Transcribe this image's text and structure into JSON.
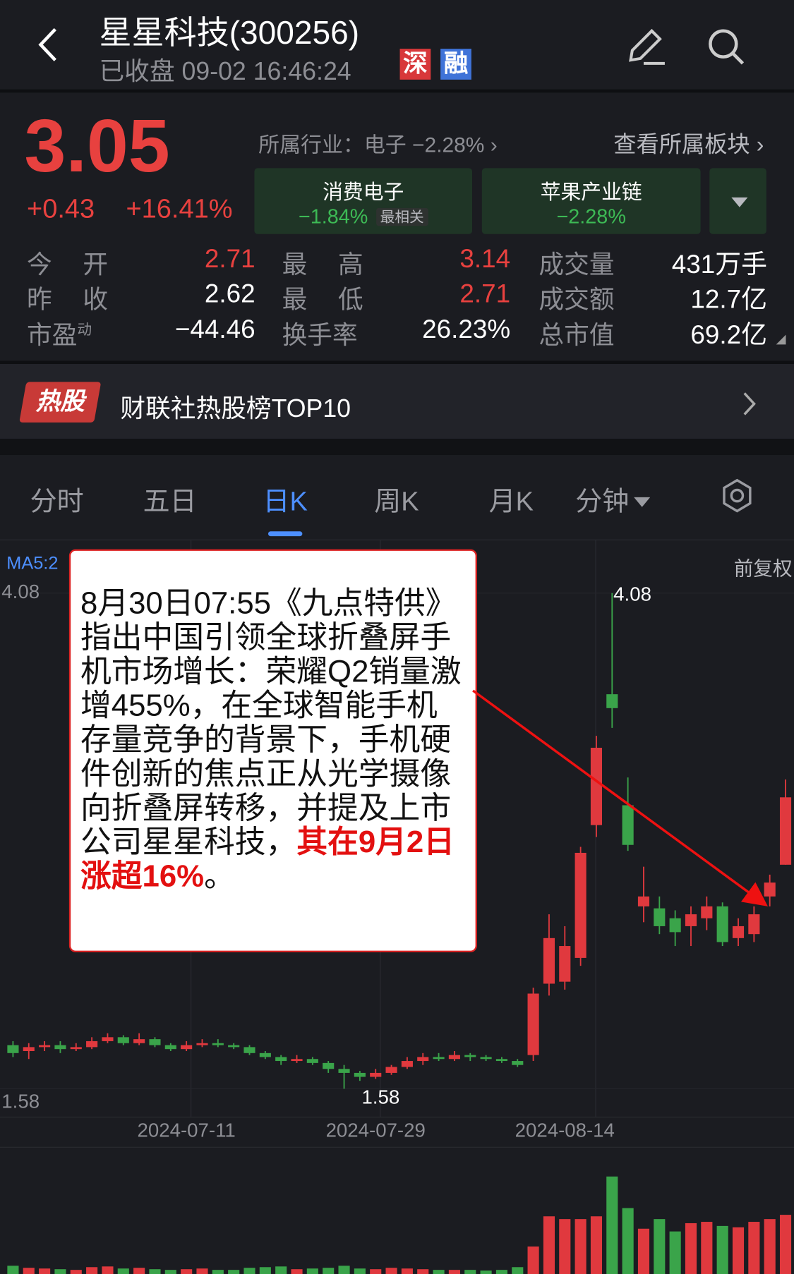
{
  "header": {
    "title": "星星科技(300256)",
    "status": "已收盘 09-02 16:46:24",
    "badges": [
      "深",
      "融"
    ]
  },
  "quote": {
    "price": "3.05",
    "change": "+0.43",
    "change_pct": "+16.41%",
    "industry": "所属行业：电子 −2.28%",
    "sector_link": "查看所属板块",
    "sectors": [
      {
        "name": "消费电子",
        "change": "−1.84%",
        "tag": "最相关"
      },
      {
        "name": "苹果产业链",
        "change": "−2.28%"
      }
    ],
    "stats": [
      {
        "label": "今 开",
        "value": "2.71",
        "color": "#e8413f"
      },
      {
        "label": "最 高",
        "value": "3.14",
        "color": "#e8413f"
      },
      {
        "label": "成交量",
        "value": "431万手",
        "color": "#ffffff"
      },
      {
        "label": "昨 收",
        "value": "2.62",
        "color": "#ffffff"
      },
      {
        "label": "最 低",
        "value": "2.71",
        "color": "#e8413f"
      },
      {
        "label": "成交额",
        "value": "12.7亿",
        "color": "#ffffff"
      },
      {
        "label": "市盈",
        "sup": "动",
        "value": "−44.46",
        "color": "#ffffff"
      },
      {
        "label": "换手率",
        "value": "26.23%",
        "color": "#ffffff"
      },
      {
        "label": "总市值",
        "value": "69.2亿",
        "color": "#ffffff"
      }
    ]
  },
  "hot": {
    "tag": "热股",
    "text": "财联社热股榜TOP10"
  },
  "tabs": {
    "items": [
      "分时",
      "五日",
      "日K",
      "周K",
      "月K",
      "分钟"
    ],
    "active": 2
  },
  "chart_data": {
    "type": "candlestick",
    "legend_text": "MA5:2",
    "adjust": "前复权",
    "up_color": "#e0393e",
    "down_color": "#3aa44a",
    "categories": [
      null,
      null,
      null,
      null,
      null,
      null,
      null,
      null,
      null,
      null,
      null,
      "2024-07-11",
      null,
      null,
      null,
      null,
      null,
      null,
      null,
      null,
      null,
      null,
      null,
      "2024-07-29",
      null,
      null,
      null,
      null,
      null,
      null,
      null,
      null,
      null,
      null,
      null,
      "2024-08-14",
      null,
      null,
      null,
      null,
      null,
      null,
      null,
      null,
      null,
      null,
      null,
      null,
      null,
      null
    ],
    "open": [
      1.8,
      1.77,
      1.79,
      1.8,
      1.78,
      1.79,
      1.82,
      1.84,
      1.81,
      1.83,
      1.8,
      1.78,
      1.8,
      1.81,
      1.8,
      1.79,
      1.76,
      1.74,
      1.72,
      1.73,
      1.71,
      1.68,
      1.66,
      1.64,
      1.66,
      1.69,
      1.72,
      1.74,
      1.73,
      1.75,
      1.74,
      1.73,
      1.72,
      1.75,
      2.11,
      2.12,
      2.24,
      2.91,
      3.57,
      3.01,
      2.5,
      2.49,
      2.44,
      2.4,
      2.44,
      2.5,
      2.34,
      2.36,
      2.55,
      2.71
    ],
    "close": [
      1.76,
      1.79,
      1.8,
      1.78,
      1.79,
      1.82,
      1.84,
      1.81,
      1.83,
      1.8,
      1.78,
      1.8,
      1.81,
      1.8,
      1.79,
      1.76,
      1.74,
      1.72,
      1.73,
      1.71,
      1.68,
      1.66,
      1.64,
      1.66,
      1.69,
      1.72,
      1.74,
      1.73,
      1.75,
      1.74,
      1.73,
      1.72,
      1.7,
      2.06,
      2.34,
      2.3,
      2.77,
      3.3,
      3.5,
      2.81,
      2.55,
      2.4,
      2.37,
      2.46,
      2.5,
      2.32,
      2.4,
      2.46,
      2.62,
      3.05
    ],
    "high": [
      1.82,
      1.81,
      1.82,
      1.82,
      1.81,
      1.84,
      1.86,
      1.85,
      1.86,
      1.84,
      1.81,
      1.82,
      1.83,
      1.83,
      1.81,
      1.8,
      1.77,
      1.75,
      1.75,
      1.74,
      1.72,
      1.7,
      1.67,
      1.68,
      1.7,
      1.74,
      1.76,
      1.76,
      1.77,
      1.76,
      1.75,
      1.74,
      1.73,
      2.09,
      2.46,
      2.4,
      2.8,
      3.36,
      4.08,
      3.15,
      2.7,
      2.55,
      2.48,
      2.5,
      2.55,
      2.52,
      2.44,
      2.5,
      2.66,
      3.14
    ],
    "low": [
      1.74,
      1.73,
      1.77,
      1.76,
      1.77,
      1.78,
      1.81,
      1.8,
      1.8,
      1.79,
      1.77,
      1.77,
      1.79,
      1.79,
      1.78,
      1.75,
      1.73,
      1.7,
      1.71,
      1.7,
      1.66,
      1.58,
      1.62,
      1.63,
      1.65,
      1.68,
      1.7,
      1.72,
      1.72,
      1.72,
      1.72,
      1.71,
      1.69,
      1.72,
      2.05,
      2.08,
      2.2,
      2.85,
      3.4,
      2.78,
      2.42,
      2.36,
      2.3,
      2.3,
      2.38,
      2.3,
      2.3,
      2.32,
      2.5,
      2.71
    ],
    "volume": [
      60,
      45,
      40,
      35,
      30,
      50,
      55,
      40,
      45,
      35,
      30,
      35,
      40,
      30,
      30,
      45,
      50,
      55,
      35,
      40,
      45,
      60,
      40,
      35,
      45,
      40,
      35,
      30,
      30,
      30,
      25,
      30,
      50,
      200,
      420,
      400,
      400,
      420,
      710,
      480,
      330,
      400,
      310,
      370,
      380,
      350,
      340,
      380,
      400,
      431
    ],
    "ylim": [
      1.58,
      4.08
    ],
    "yticks": [
      4.08,
      1.58
    ],
    "high_label": 4.08,
    "low_label": 1.58
  },
  "note": {
    "text": "8月30日07:55《九点特供》指出中国引领全球折叠屏手机市场增长：荣耀Q2销量激增455%，在全球智能手机存量竞争的背景下，手机硬件创新的焦点正从光学摄像向折叠屏转移，并提及上市公司星星科技，",
    "highlight": "其在9月2日涨超16%",
    "end": "。"
  }
}
